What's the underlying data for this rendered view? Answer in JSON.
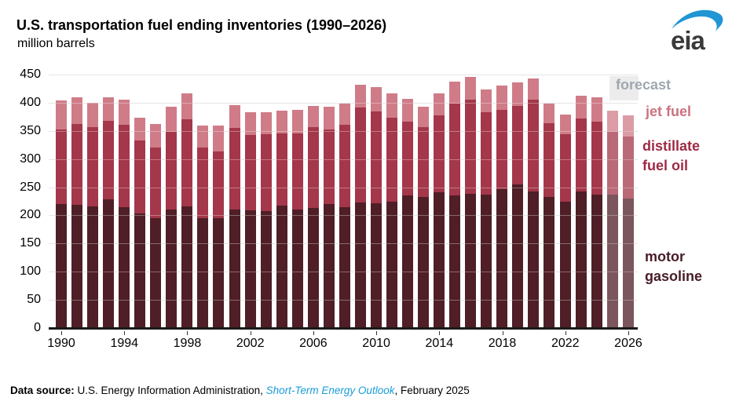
{
  "header": {
    "title": "U.S. transportation fuel ending inventories (1990–2026)",
    "subtitle": "million barrels",
    "logo_text": "eia"
  },
  "chart_data": {
    "type": "bar",
    "stacked": true,
    "title": "U.S. transportation fuel ending inventories (1990–2026)",
    "ylabel": "million barrels",
    "ylim": [
      0,
      450
    ],
    "ytick_interval": 50,
    "grid": true,
    "years": [
      1990,
      1991,
      1992,
      1993,
      1994,
      1995,
      1996,
      1997,
      1998,
      1999,
      2000,
      2001,
      2002,
      2003,
      2004,
      2005,
      2006,
      2007,
      2008,
      2009,
      2010,
      2011,
      2012,
      2013,
      2014,
      2015,
      2016,
      2017,
      2018,
      2019,
      2020,
      2021,
      2022,
      2023,
      2024,
      2025,
      2026
    ],
    "xticks": [
      1990,
      1994,
      1998,
      2002,
      2006,
      2010,
      2014,
      2018,
      2022,
      2026
    ],
    "series": [
      {
        "name": "motor gasoline",
        "color": "#4f1e26",
        "values": [
          220,
          219,
          216,
          228,
          215,
          203,
          195,
          210,
          216,
          195,
          195,
          210,
          209,
          207,
          218,
          210,
          213,
          220,
          214,
          223,
          221,
          224,
          235,
          233,
          241,
          235,
          238,
          237,
          247,
          255,
          242,
          233,
          225,
          242,
          237,
          237,
          230
        ]
      },
      {
        "name": "distillate fuel oil",
        "color": "#a4374a",
        "values": [
          132,
          143,
          141,
          140,
          146,
          130,
          126,
          138,
          155,
          125,
          119,
          145,
          134,
          137,
          127,
          135,
          143,
          132,
          147,
          168,
          163,
          149,
          131,
          123,
          137,
          163,
          167,
          146,
          141,
          139,
          164,
          131,
          119,
          130,
          129,
          112,
          110
        ]
      },
      {
        "name": "jet fuel",
        "color": "#cf7c88",
        "values": [
          52,
          48,
          43,
          42,
          45,
          40,
          41,
          45,
          45,
          40,
          45,
          41,
          40,
          39,
          41,
          43,
          39,
          41,
          37,
          41,
          44,
          43,
          41,
          37,
          38,
          40,
          41,
          41,
          42,
          42,
          37,
          35,
          35,
          40,
          43,
          37,
          37
        ]
      }
    ],
    "forecast_years": [
      2025,
      2026
    ]
  },
  "legend": {
    "forecast": "forecast",
    "jet_fuel": "jet fuel",
    "distillate_line1": "distillate",
    "distillate_line2": "fuel oil",
    "gasoline_line1": "motor",
    "gasoline_line2": "gasoline"
  },
  "colors": {
    "gasoline": "#4f1e26",
    "distillate": "#a4374a",
    "jet": "#cf7c88",
    "grid": "#d9d9d9",
    "axis": "#1a1a1a",
    "forecast_band": "#ececec",
    "forecast_label": "#9fa8b0",
    "jet_label": "#cb7280",
    "distillate_label": "#9e2b44",
    "gasoline_label": "#471d26",
    "link_blue": "#1a9cd8",
    "logo_blue": "#2196d4",
    "logo_text": "#3a3a3a"
  },
  "footer": {
    "lead": "Data source:",
    "text1": " U.S. Energy Information Administration, ",
    "link": "Short-Term Energy Outlook",
    "text2": ", February 2025"
  }
}
